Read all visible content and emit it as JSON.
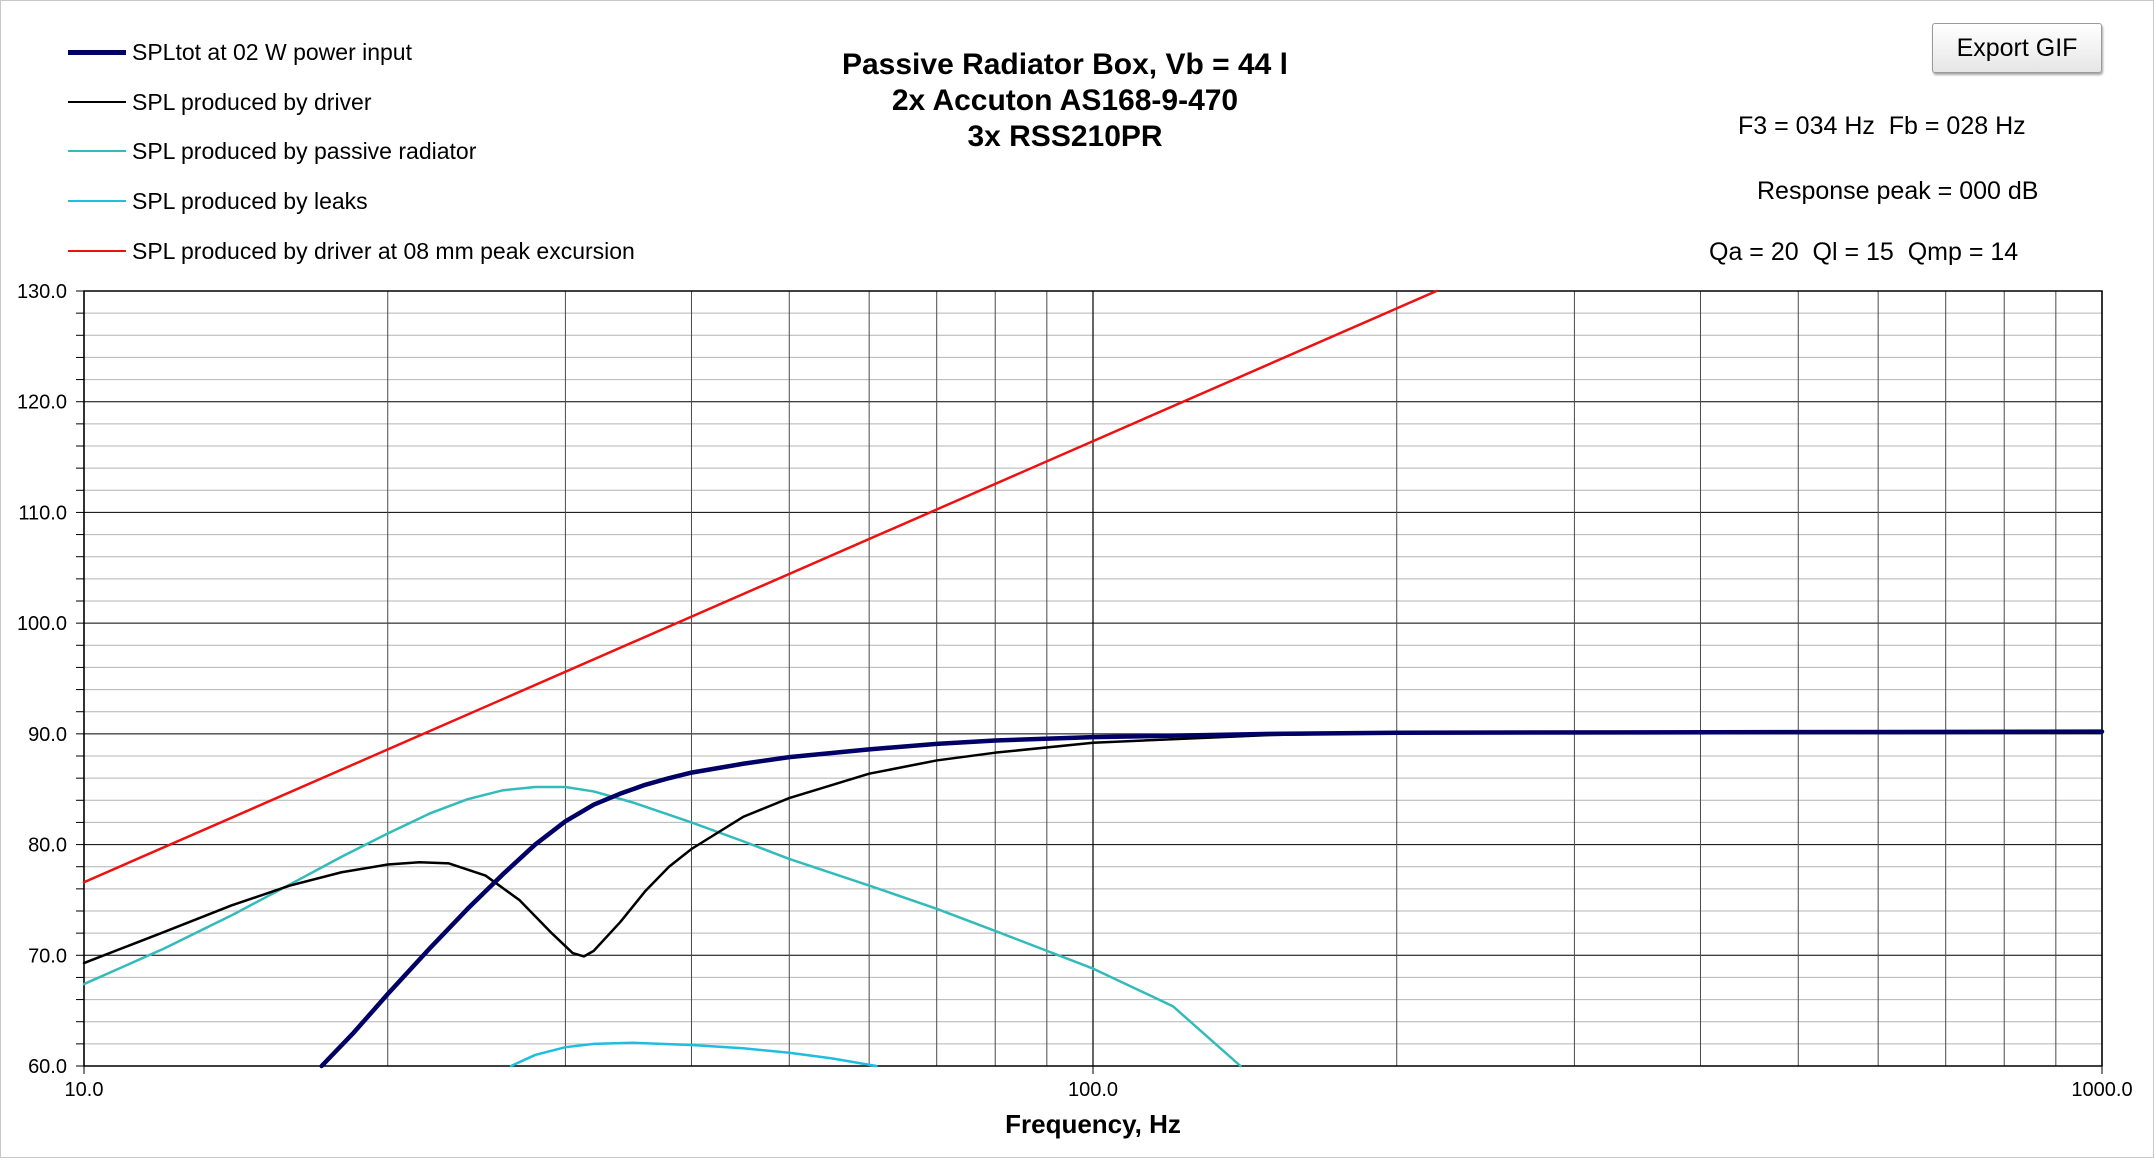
{
  "export_button_label": "Export GIF",
  "info": {
    "f3_fb": "F3 = 034 Hz  Fb = 028 Hz",
    "response_peak": "Response peak = 000 dB",
    "q_values": "Qa = 20  Ql = 15  Qmp = 14"
  },
  "chart_data": {
    "type": "line",
    "title": [
      "Passive Radiator Box, Vb = 44 l",
      "2x Accuton AS168-9-470",
      "3x RSS210PR"
    ],
    "xlabel": "Frequency, Hz",
    "ylabel": "",
    "xscale": "log",
    "xlim": [
      10,
      1000
    ],
    "ylim": [
      60,
      130
    ],
    "x_ticks": [
      {
        "value": 10,
        "label": "10.0"
      },
      {
        "value": 100,
        "label": "100.0"
      },
      {
        "value": 1000,
        "label": "1000.0"
      }
    ],
    "y_ticks": [
      {
        "value": 60,
        "label": "60.0"
      },
      {
        "value": 70,
        "label": "70.0"
      },
      {
        "value": 80,
        "label": "80.0"
      },
      {
        "value": 90,
        "label": "90.0"
      },
      {
        "value": 100,
        "label": "100.0"
      },
      {
        "value": 110,
        "label": "110.0"
      },
      {
        "value": 120,
        "label": "120.0"
      },
      {
        "value": 130,
        "label": "130.0"
      }
    ],
    "grid": true,
    "legend_position": "top-left",
    "series": [
      {
        "name": "SPLtot at 02 W power input",
        "color": "#000066",
        "width": 4.5,
        "points": [
          [
            17.2,
            60
          ],
          [
            18.5,
            63
          ],
          [
            20,
            66.5
          ],
          [
            22,
            70.6
          ],
          [
            24,
            74.2
          ],
          [
            26,
            77.3
          ],
          [
            28,
            80
          ],
          [
            30,
            82.1
          ],
          [
            32,
            83.6
          ],
          [
            34,
            84.6
          ],
          [
            36,
            85.4
          ],
          [
            38,
            86
          ],
          [
            40,
            86.5
          ],
          [
            45,
            87.3
          ],
          [
            50,
            87.9
          ],
          [
            60,
            88.6
          ],
          [
            70,
            89.1
          ],
          [
            80,
            89.4
          ],
          [
            100,
            89.7
          ],
          [
            150,
            90
          ],
          [
            200,
            90.1
          ],
          [
            1000,
            90.2
          ]
        ]
      },
      {
        "name": "SPL produced by driver",
        "color": "#000000",
        "width": 2.5,
        "points": [
          [
            10,
            69.3
          ],
          [
            12,
            72.1
          ],
          [
            14,
            74.5
          ],
          [
            16,
            76.3
          ],
          [
            18,
            77.5
          ],
          [
            20,
            78.2
          ],
          [
            21.5,
            78.4
          ],
          [
            23,
            78.3
          ],
          [
            25,
            77.2
          ],
          [
            27,
            75
          ],
          [
            29,
            72.1
          ],
          [
            30.5,
            70.2
          ],
          [
            31.3,
            69.9
          ],
          [
            32,
            70.4
          ],
          [
            34,
            73
          ],
          [
            36,
            75.8
          ],
          [
            38,
            78
          ],
          [
            40,
            79.6
          ],
          [
            45,
            82.5
          ],
          [
            50,
            84.2
          ],
          [
            60,
            86.4
          ],
          [
            70,
            87.6
          ],
          [
            80,
            88.3
          ],
          [
            100,
            89.2
          ],
          [
            150,
            89.9
          ],
          [
            200,
            90.1
          ],
          [
            1000,
            90.2
          ]
        ]
      },
      {
        "name": "SPL produced by passive radiator",
        "color": "#33bbbb",
        "width": 2.5,
        "points": [
          [
            10,
            67.4
          ],
          [
            12,
            70.6
          ],
          [
            14,
            73.6
          ],
          [
            16,
            76.4
          ],
          [
            18,
            78.9
          ],
          [
            20,
            81
          ],
          [
            22,
            82.8
          ],
          [
            24,
            84.1
          ],
          [
            26,
            84.9
          ],
          [
            28,
            85.2
          ],
          [
            30,
            85.2
          ],
          [
            32,
            84.8
          ],
          [
            35,
            83.8
          ],
          [
            40,
            82
          ],
          [
            45,
            80.3
          ],
          [
            50,
            78.7
          ],
          [
            60,
            76.3
          ],
          [
            70,
            74.2
          ],
          [
            80,
            72.2
          ],
          [
            100,
            68.8
          ],
          [
            120,
            65.4
          ],
          [
            140,
            60
          ]
        ]
      },
      {
        "name": "SPL produced by leaks",
        "color": "#1fbde0",
        "width": 2.5,
        "points": [
          [
            26.5,
            60
          ],
          [
            28,
            61
          ],
          [
            30,
            61.7
          ],
          [
            32,
            62
          ],
          [
            35,
            62.1
          ],
          [
            40,
            61.9
          ],
          [
            45,
            61.6
          ],
          [
            50,
            61.2
          ],
          [
            55,
            60.7
          ],
          [
            61,
            60
          ]
        ]
      },
      {
        "name": "SPL produced by driver at 08 mm peak excursion",
        "color": "#ee1111",
        "width": 2.5,
        "points": [
          [
            10,
            76.6
          ],
          [
            219,
            130
          ]
        ]
      }
    ]
  }
}
